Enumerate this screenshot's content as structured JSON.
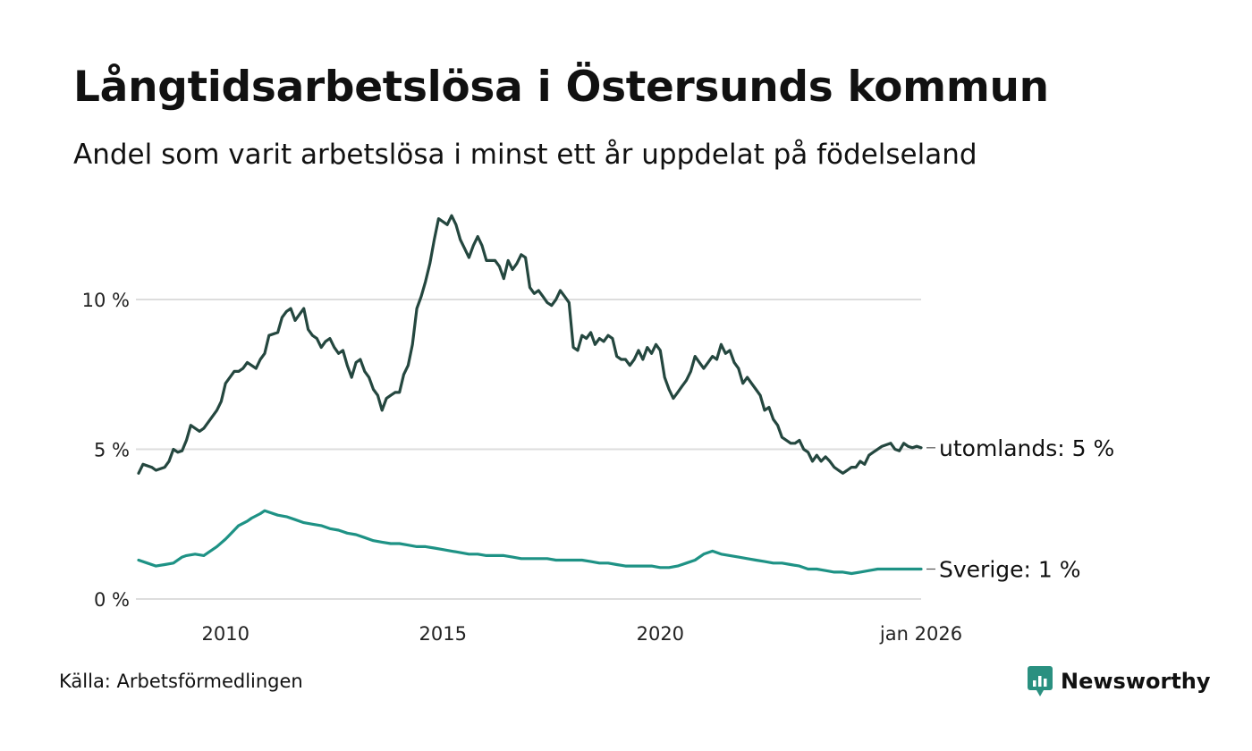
{
  "title": "Långtidsarbetslösa i Östersunds kommun",
  "subtitle": "Andel som varit arbetslösa i minst ett år uppdelat på födelseland",
  "source": "Källa: Arbetsförmedlingen",
  "brand": "Newsworthy",
  "colors": {
    "utomlands": "#24473f",
    "sverige": "#1e9285",
    "grid": "#dddddd",
    "brand": "#2a9080"
  },
  "chart_data": {
    "type": "line",
    "title": "Långtidsarbetslösa i Östersunds kommun",
    "xlabel": "",
    "ylabel": "",
    "ylim": [
      0,
      14
    ],
    "xlim": [
      2008.0,
      2026.0
    ],
    "grid": true,
    "yticks": [
      {
        "value": 0,
        "label": "0 %"
      },
      {
        "value": 5,
        "label": "5 %"
      },
      {
        "value": 10,
        "label": "10 %"
      }
    ],
    "xticks": [
      {
        "value": 2010,
        "label": "2010"
      },
      {
        "value": 2015,
        "label": "2015"
      },
      {
        "value": 2020,
        "label": "2020"
      },
      {
        "value": 2026.0,
        "label": "jan 2026"
      }
    ],
    "series": [
      {
        "key": "utomlands",
        "name": "utomlands",
        "end_label": "utomlands: 5 %",
        "x": [
          2008.0,
          2008.1,
          2008.3,
          2008.4,
          2008.6,
          2008.7,
          2008.8,
          2008.9,
          2009.0,
          2009.1,
          2009.2,
          2009.4,
          2009.5,
          2009.6,
          2009.8,
          2009.9,
          2010.0,
          2010.2,
          2010.3,
          2010.4,
          2010.5,
          2010.7,
          2010.8,
          2010.9,
          2011.0,
          2011.2,
          2011.3,
          2011.4,
          2011.5,
          2011.6,
          2011.8,
          2011.9,
          2012.0,
          2012.1,
          2012.2,
          2012.3,
          2012.4,
          2012.5,
          2012.6,
          2012.7,
          2012.8,
          2012.9,
          2013.0,
          2013.1,
          2013.2,
          2013.3,
          2013.4,
          2013.5,
          2013.6,
          2013.7,
          2013.8,
          2013.9,
          2014.0,
          2014.1,
          2014.2,
          2014.3,
          2014.4,
          2014.5,
          2014.6,
          2014.7,
          2014.8,
          2014.9,
          2015.0,
          2015.1,
          2015.2,
          2015.3,
          2015.4,
          2015.5,
          2015.6,
          2015.7,
          2015.8,
          2015.9,
          2016.0,
          2016.1,
          2016.2,
          2016.3,
          2016.4,
          2016.5,
          2016.6,
          2016.7,
          2016.8,
          2016.9,
          2017.0,
          2017.1,
          2017.2,
          2017.3,
          2017.4,
          2017.5,
          2017.6,
          2017.7,
          2017.8,
          2017.9,
          2018.0,
          2018.1,
          2018.2,
          2018.3,
          2018.4,
          2018.5,
          2018.6,
          2018.7,
          2018.8,
          2018.9,
          2019.0,
          2019.1,
          2019.2,
          2019.3,
          2019.4,
          2019.5,
          2019.6,
          2019.7,
          2019.8,
          2019.9,
          2020.0,
          2020.1,
          2020.2,
          2020.3,
          2020.4,
          2020.5,
          2020.6,
          2020.7,
          2020.8,
          2020.9,
          2021.0,
          2021.1,
          2021.2,
          2021.3,
          2021.4,
          2021.5,
          2021.6,
          2021.7,
          2021.8,
          2021.9,
          2022.0,
          2022.1,
          2022.2,
          2022.3,
          2022.4,
          2022.5,
          2022.6,
          2022.7,
          2022.8,
          2022.9,
          2023.0,
          2023.1,
          2023.2,
          2023.3,
          2023.4,
          2023.5,
          2023.6,
          2023.7,
          2023.8,
          2023.9,
          2024.0,
          2024.1,
          2024.2,
          2024.3,
          2024.4,
          2024.5,
          2024.6,
          2024.7,
          2024.8,
          2024.9,
          2025.0,
          2025.1,
          2025.2,
          2025.3,
          2025.4,
          2025.5,
          2025.6,
          2025.7,
          2025.8,
          2025.9,
          2026.0
        ],
        "values": [
          4.2,
          4.5,
          4.4,
          4.3,
          4.4,
          4.6,
          5.0,
          4.9,
          4.95,
          5.3,
          5.8,
          5.6,
          5.7,
          5.9,
          6.3,
          6.6,
          7.2,
          7.6,
          7.6,
          7.7,
          7.9,
          7.7,
          8.0,
          8.2,
          8.8,
          8.9,
          9.4,
          9.6,
          9.7,
          9.3,
          9.7,
          9.0,
          8.8,
          8.7,
          8.4,
          8.6,
          8.7,
          8.4,
          8.2,
          8.3,
          7.8,
          7.4,
          7.9,
          8.0,
          7.6,
          7.4,
          7.0,
          6.8,
          6.3,
          6.7,
          6.8,
          6.9,
          6.9,
          7.5,
          7.8,
          8.5,
          9.7,
          10.1,
          10.6,
          11.2,
          12.0,
          12.7,
          12.6,
          12.5,
          12.8,
          12.5,
          12.0,
          11.7,
          11.4,
          11.8,
          12.1,
          11.8,
          11.3,
          11.3,
          11.3,
          11.1,
          10.7,
          11.3,
          11.0,
          11.2,
          11.5,
          11.4,
          10.4,
          10.2,
          10.3,
          10.1,
          9.9,
          9.8,
          10.0,
          10.3,
          10.1,
          9.9,
          8.4,
          8.3,
          8.8,
          8.7,
          8.9,
          8.5,
          8.7,
          8.6,
          8.8,
          8.7,
          8.1,
          8.0,
          8.0,
          7.8,
          8.0,
          8.3,
          8.0,
          8.4,
          8.2,
          8.5,
          8.3,
          7.4,
          7.0,
          6.7,
          6.9,
          7.1,
          7.3,
          7.6,
          8.1,
          7.9,
          7.7,
          7.9,
          8.1,
          8.0,
          8.5,
          8.2,
          8.3,
          7.9,
          7.7,
          7.2,
          7.4,
          7.2,
          7.0,
          6.8,
          6.3,
          6.4,
          6.0,
          5.8,
          5.4,
          5.3,
          5.2,
          5.2,
          5.3,
          5.0,
          4.9,
          4.6,
          4.8,
          4.6,
          4.75,
          4.6,
          4.4,
          4.3,
          4.2,
          4.3,
          4.4,
          4.4,
          4.6,
          4.5,
          4.8,
          4.9,
          5.0,
          5.1,
          5.15,
          5.2,
          5.0,
          4.95,
          5.2,
          5.1,
          5.05,
          5.1,
          5.05
        ]
      },
      {
        "key": "sverige",
        "name": "Sverige",
        "end_label": "Sverige: 1 %",
        "x": [
          2008.0,
          2008.2,
          2008.4,
          2008.6,
          2008.8,
          2009.0,
          2009.1,
          2009.3,
          2009.5,
          2009.6,
          2009.8,
          2010.0,
          2010.2,
          2010.3,
          2010.5,
          2010.6,
          2010.8,
          2010.9,
          2011.0,
          2011.2,
          2011.4,
          2011.6,
          2011.8,
          2012.0,
          2012.2,
          2012.4,
          2012.6,
          2012.8,
          2013.0,
          2013.2,
          2013.4,
          2013.6,
          2013.8,
          2014.0,
          2014.2,
          2014.4,
          2014.6,
          2014.8,
          2015.0,
          2015.2,
          2015.4,
          2015.6,
          2015.8,
          2016.0,
          2016.2,
          2016.4,
          2016.6,
          2016.8,
          2017.0,
          2017.2,
          2017.4,
          2017.6,
          2017.8,
          2018.0,
          2018.2,
          2018.4,
          2018.6,
          2018.8,
          2019.0,
          2019.2,
          2019.4,
          2019.6,
          2019.8,
          2020.0,
          2020.2,
          2020.4,
          2020.6,
          2020.8,
          2021.0,
          2021.2,
          2021.4,
          2021.6,
          2021.8,
          2022.0,
          2022.2,
          2022.4,
          2022.6,
          2022.8,
          2023.0,
          2023.2,
          2023.4,
          2023.6,
          2023.8,
          2024.0,
          2024.2,
          2024.4,
          2024.6,
          2024.8,
          2025.0,
          2025.2,
          2025.4,
          2025.6,
          2025.8,
          2026.0
        ],
        "values": [
          1.3,
          1.2,
          1.1,
          1.15,
          1.2,
          1.4,
          1.45,
          1.5,
          1.45,
          1.55,
          1.75,
          2.0,
          2.3,
          2.45,
          2.6,
          2.7,
          2.85,
          2.95,
          2.9,
          2.8,
          2.75,
          2.65,
          2.55,
          2.5,
          2.45,
          2.35,
          2.3,
          2.2,
          2.15,
          2.05,
          1.95,
          1.9,
          1.85,
          1.85,
          1.8,
          1.75,
          1.75,
          1.7,
          1.65,
          1.6,
          1.55,
          1.5,
          1.5,
          1.45,
          1.45,
          1.45,
          1.4,
          1.35,
          1.35,
          1.35,
          1.35,
          1.3,
          1.3,
          1.3,
          1.3,
          1.25,
          1.2,
          1.2,
          1.15,
          1.1,
          1.1,
          1.1,
          1.1,
          1.05,
          1.05,
          1.1,
          1.2,
          1.3,
          1.5,
          1.6,
          1.5,
          1.45,
          1.4,
          1.35,
          1.3,
          1.25,
          1.2,
          1.2,
          1.15,
          1.1,
          1.0,
          1.0,
          0.95,
          0.9,
          0.9,
          0.85,
          0.9,
          0.95,
          1.0,
          1.0,
          1.0,
          1.0,
          1.0,
          1.0
        ]
      }
    ]
  }
}
